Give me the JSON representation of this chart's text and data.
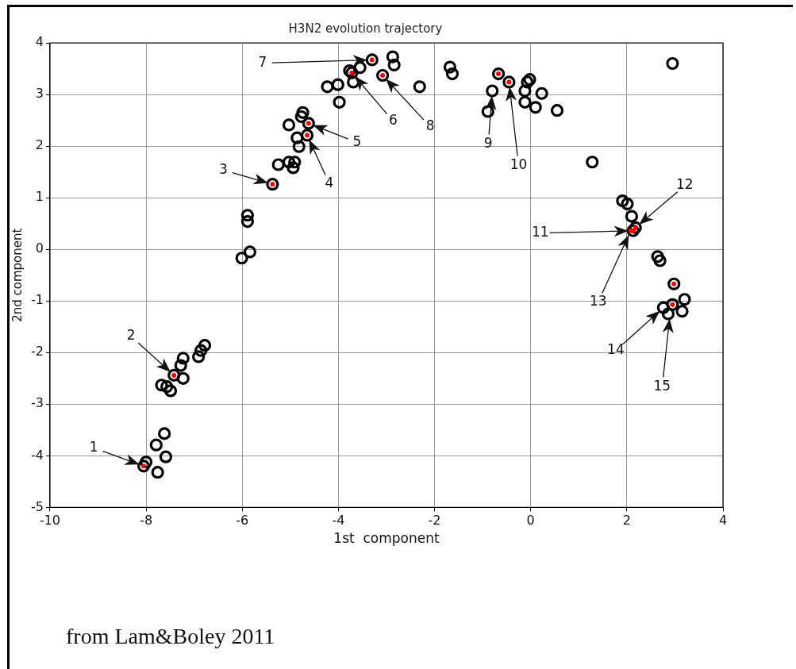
{
  "chart_data": {
    "type": "scatter",
    "title": "H3N2 evolution trajectory",
    "xlabel": "1st  component",
    "ylabel": "2nd component",
    "xlim": [
      -10,
      4
    ],
    "xticks": [
      -10,
      -8,
      -6,
      -4,
      -2,
      0,
      2,
      4
    ],
    "ylim": [
      -5,
      4
    ],
    "yticks": [
      -5,
      -4,
      -3,
      -2,
      -1,
      0,
      1,
      2,
      3,
      4
    ],
    "grid": true,
    "legend": false,
    "marker": "circle",
    "series": [
      {
        "color": "#000000",
        "x": [
          -7.62,
          -7.79,
          -7.59,
          -7.76,
          -8.05,
          -8.0,
          -6.78,
          -6.86,
          -6.91,
          -7.23,
          -7.28,
          -7.23,
          -7.42,
          -7.57,
          -7.68,
          -7.49,
          -6.01,
          -5.84,
          -5.89,
          -5.89,
          -5.37,
          -5.25,
          -5.03,
          -4.91,
          -4.94,
          -4.82,
          -4.86,
          -4.65,
          -5.03,
          -4.62,
          -4.74,
          -4.77,
          -3.98,
          -4.23,
          -4.01,
          -3.69,
          -3.77,
          -3.72,
          -3.55,
          -3.3,
          -3.08,
          -2.87,
          -2.84,
          -1.68,
          -1.63,
          -2.31,
          -0.67,
          -0.45,
          -0.8,
          -0.89,
          -0.07,
          -0.12,
          0.23,
          -0.12,
          0.1,
          0.55,
          -0.02,
          1.28,
          2.95,
          1.91,
          2.01,
          2.1,
          2.13,
          2.18,
          2.64,
          2.69,
          2.98,
          2.95,
          3.2,
          3.15,
          2.76,
          2.86
        ],
        "values": [
          -3.57,
          -3.79,
          -4.02,
          -4.32,
          -4.2,
          -4.12,
          -1.86,
          -1.96,
          -2.08,
          -2.11,
          -2.25,
          -2.5,
          -2.44,
          -2.66,
          -2.63,
          -2.74,
          -0.17,
          -0.05,
          0.54,
          0.66,
          1.26,
          1.64,
          1.69,
          1.69,
          1.58,
          1.99,
          2.16,
          2.21,
          2.41,
          2.44,
          2.65,
          2.57,
          2.85,
          3.15,
          3.19,
          3.24,
          3.46,
          3.42,
          3.52,
          3.67,
          3.37,
          3.73,
          3.57,
          3.53,
          3.4,
          3.15,
          3.4,
          3.24,
          3.07,
          2.67,
          3.24,
          3.07,
          3.02,
          2.85,
          2.75,
          2.69,
          3.29,
          1.69,
          3.6,
          0.94,
          0.88,
          0.64,
          0.36,
          0.42,
          -0.14,
          -0.22,
          -0.67,
          -1.07,
          -0.97,
          -1.2,
          -1.13,
          -1.25
        ]
      },
      {
        "color": "#ff0000",
        "x": [
          -8.05,
          -7.42,
          -5.37,
          -4.65,
          -4.62,
          -3.72,
          -3.3,
          -3.08,
          -0.67,
          -0.45,
          2.13,
          2.18,
          2.08,
          2.98,
          2.95
        ],
        "values": [
          -4.2,
          -2.44,
          1.26,
          2.21,
          2.44,
          3.42,
          3.67,
          3.37,
          3.4,
          3.24,
          0.36,
          0.42,
          0.36,
          -0.67,
          -1.07
        ]
      }
    ],
    "annotations": [
      {
        "text": "1",
        "x": -8.05,
        "y": -4.2
      },
      {
        "text": "2",
        "x": -7.42,
        "y": -2.44
      },
      {
        "text": "3",
        "x": -5.37,
        "y": 1.26
      },
      {
        "text": "4",
        "x": -4.65,
        "y": 2.21
      },
      {
        "text": "5",
        "x": -4.62,
        "y": 2.44
      },
      {
        "text": "6",
        "x": -3.72,
        "y": 3.42
      },
      {
        "text": "7",
        "x": -3.3,
        "y": 3.67
      },
      {
        "text": "8",
        "x": -3.08,
        "y": 3.37
      },
      {
        "text": "9",
        "x": -0.8,
        "y": 3.07
      },
      {
        "text": "10",
        "x": -0.45,
        "y": 3.24
      },
      {
        "text": "11",
        "x": 2.13,
        "y": 0.36
      },
      {
        "text": "12",
        "x": 2.18,
        "y": 0.42
      },
      {
        "text": "13",
        "x": 2.08,
        "y": 0.36
      },
      {
        "text": "14",
        "x": 2.76,
        "y": -1.13
      },
      {
        "text": "15",
        "x": 2.9,
        "y": -1.25
      },
      "from Lam&Boley 2011"
    ]
  }
}
